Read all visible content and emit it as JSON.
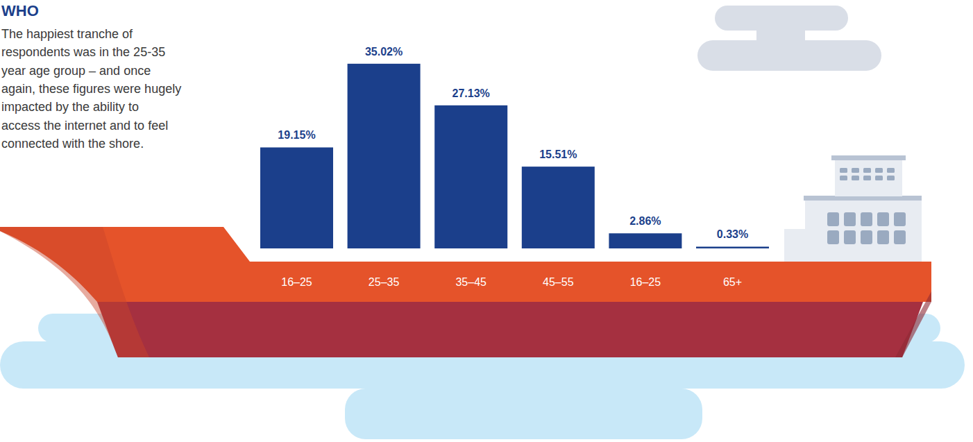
{
  "chart_data": {
    "type": "bar",
    "title": "WHO",
    "annotation": [
      "The happiest tranche of",
      "respondents was in the 25-35",
      "year age group – and once",
      "again, these figures were hugely",
      "impacted by the ability to",
      "access the internet and to feel",
      "connected with the shore."
    ],
    "categories": [
      "16–25",
      "25–35",
      "35–45",
      "45–55",
      "16–25",
      "65+"
    ],
    "values": [
      19.15,
      35.02,
      27.13,
      15.51,
      2.86,
      0.33
    ],
    "value_labels": [
      "19.15%",
      "35.02%",
      "27.13%",
      "15.51%",
      "2.86%",
      "0.33%"
    ],
    "color": "#1b3f8b",
    "ylim": [
      0,
      36
    ],
    "data_labels": true,
    "tick_labels": "x"
  }
}
